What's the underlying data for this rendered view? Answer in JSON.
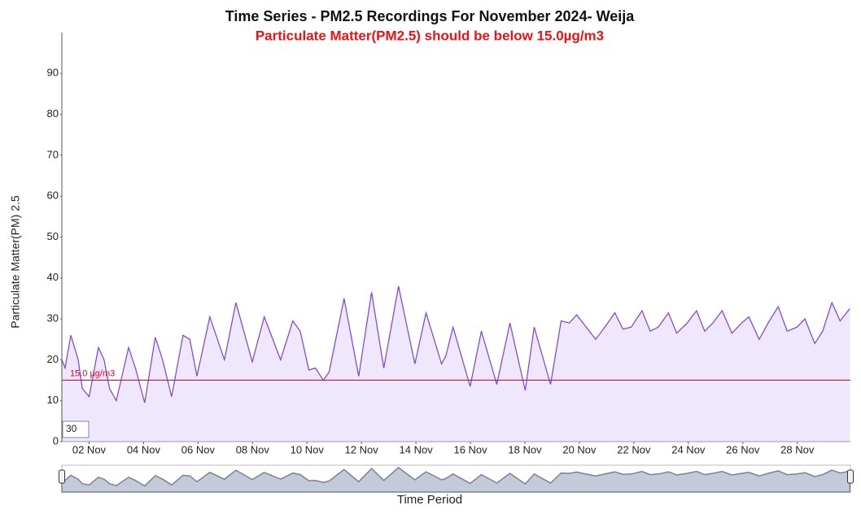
{
  "chart_data": {
    "type": "area",
    "title": "Time Series - PM2.5 Recordings For November 2024- Weija",
    "subtitle": "Particulate Matter(PM2.5) should be below 15.0µg/m3",
    "x_label": "Time Period",
    "y_label": "Particulate Matter(PM) 2.5",
    "zoom_input": "30",
    "threshold": {
      "value": 15,
      "label": "15.0 µg/m3",
      "color": "#e8001c"
    },
    "ylim": [
      0,
      100
    ],
    "yticks": [
      0,
      10,
      20,
      30,
      40,
      50,
      60,
      70,
      80,
      90
    ],
    "xlim": [
      1,
      29.95
    ],
    "xticks": [
      {
        "value": 2,
        "label": "02 Nov"
      },
      {
        "value": 4,
        "label": "04 Nov"
      },
      {
        "value": 6,
        "label": "06 Nov"
      },
      {
        "value": 8,
        "label": "08 Nov"
      },
      {
        "value": 10,
        "label": "10 Nov"
      },
      {
        "value": 12,
        "label": "12 Nov"
      },
      {
        "value": 14,
        "label": "14 Nov"
      },
      {
        "value": 16,
        "label": "16 Nov"
      },
      {
        "value": 18,
        "label": "18 Nov"
      },
      {
        "value": 20,
        "label": "20 Nov"
      },
      {
        "value": 22,
        "label": "22 Nov"
      },
      {
        "value": 24,
        "label": "24 Nov"
      },
      {
        "value": 26,
        "label": "26 Nov"
      },
      {
        "value": 28,
        "label": "28 Nov"
      }
    ],
    "color": "#7b3fe4",
    "fill": "#efe8fd",
    "x": [
      1.0,
      1.12,
      1.33,
      1.6,
      1.75,
      2.0,
      2.34,
      2.55,
      2.75,
      3.0,
      3.45,
      3.7,
      4.04,
      4.43,
      4.7,
      5.03,
      5.45,
      5.7,
      5.96,
      6.43,
      6.97,
      7.39,
      7.99,
      8.43,
      9.03,
      9.48,
      9.75,
      10.07,
      10.31,
      10.6,
      10.81,
      11.36,
      11.9,
      12.37,
      12.82,
      13.36,
      13.96,
      14.37,
      14.94,
      15.1,
      15.36,
      15.99,
      16.4,
      16.97,
      17.45,
      18.01,
      18.34,
      18.94,
      19.33,
      19.63,
      19.9,
      20.6,
      20.99,
      21.3,
      21.6,
      21.9,
      22.3,
      22.6,
      22.9,
      23.27,
      23.57,
      23.96,
      24.3,
      24.6,
      24.9,
      25.24,
      25.6,
      25.96,
      26.22,
      26.6,
      26.93,
      27.3,
      27.63,
      27.99,
      28.28,
      28.64,
      28.93,
      29.27,
      29.57,
      29.93
    ],
    "values": [
      20,
      18,
      26,
      20,
      13,
      11,
      23,
      20,
      13,
      10,
      23,
      18,
      9.5,
      25.5,
      20,
      11,
      26,
      25,
      16,
      30.5,
      20,
      34,
      19.5,
      30.5,
      20,
      29.5,
      27,
      17.5,
      18,
      15,
      17,
      35,
      16,
      36.5,
      18,
      38,
      19,
      31.5,
      19,
      21,
      28,
      13.5,
      27,
      14,
      29,
      12.5,
      28,
      14,
      29.5,
      29,
      31,
      25,
      28.5,
      31.5,
      27.5,
      28,
      32,
      27,
      28,
      31.5,
      26.5,
      29,
      32,
      27,
      29,
      32,
      26.5,
      29,
      30.5,
      25,
      29,
      33,
      27,
      28,
      30,
      24,
      27,
      34,
      29.5,
      32.5
    ]
  }
}
